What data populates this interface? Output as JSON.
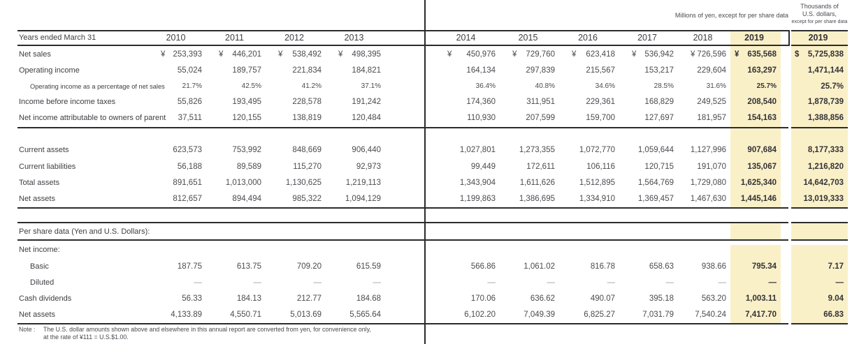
{
  "captions": {
    "yen": "Millions of yen, except for per share data",
    "usd_line1": "Thousands of",
    "usd_line2": "U.S. dollars,",
    "usd_line3": "except for per share data"
  },
  "header": {
    "row_label": "Years ended March 31",
    "years": [
      "2010",
      "2011",
      "2012",
      "2013",
      "2014",
      "2015",
      "2016",
      "2017",
      "2018",
      "2019"
    ],
    "usd_year": "2019"
  },
  "colors": {
    "highlight": "#FAF0C8",
    "rule": "#2B2B2B",
    "text": "#3E3E44"
  },
  "table": {
    "rows": [
      {
        "label": "Net sales",
        "indent": 0,
        "small": false,
        "currency": true,
        "values": [
          "253,393",
          "446,201",
          "538,492",
          "498,395",
          "450,976",
          "729,760",
          "623,418",
          "536,942",
          "726,596",
          "635,568"
        ],
        "usd": "5,725,838"
      },
      {
        "label": "Operating income",
        "indent": 0,
        "small": false,
        "currency": false,
        "values": [
          "55,024",
          "189,757",
          "221,834",
          "184,821",
          "164,134",
          "297,839",
          "215,567",
          "153,217",
          "229,604",
          "163,297"
        ],
        "usd": "1,471,144"
      },
      {
        "label": "Operating income as a percentage of net sales",
        "indent": 1,
        "small": true,
        "currency": false,
        "values": [
          "21.7%",
          "42.5%",
          "41.2%",
          "37.1%",
          "36.4%",
          "40.8%",
          "34.6%",
          "28.5%",
          "31.6%",
          "25.7%"
        ],
        "usd": "25.7%"
      },
      {
        "label": "Income before income taxes",
        "indent": 0,
        "small": false,
        "currency": false,
        "values": [
          "55,826",
          "193,495",
          "228,578",
          "191,242",
          "174,360",
          "311,951",
          "229,361",
          "168,829",
          "249,525",
          "208,540"
        ],
        "usd": "1,878,739"
      },
      {
        "label": "Net income attributable to owners of parent",
        "indent": 0,
        "small": false,
        "currency": false,
        "values": [
          "37,511",
          "120,155",
          "138,819",
          "120,484",
          "110,930",
          "207,599",
          "159,700",
          "127,697",
          "181,957",
          "154,163"
        ],
        "usd": "1,388,856"
      },
      {
        "label": "Current assets",
        "indent": 0,
        "small": false,
        "currency": false,
        "values": [
          "623,573",
          "753,992",
          "848,669",
          "906,440",
          "1,027,801",
          "1,273,355",
          "1,072,770",
          "1,059,644",
          "1,127,996",
          "907,684"
        ],
        "usd": "8,177,333"
      },
      {
        "label": "Current liabilities",
        "indent": 0,
        "small": false,
        "currency": false,
        "values": [
          "56,188",
          "89,589",
          "115,270",
          "92,973",
          "99,449",
          "172,611",
          "106,116",
          "120,715",
          "191,070",
          "135,067"
        ],
        "usd": "1,216,820"
      },
      {
        "label": "Total assets",
        "indent": 0,
        "small": false,
        "currency": false,
        "values": [
          "891,651",
          "1,013,000",
          "1,130,625",
          "1,219,113",
          "1,343,904",
          "1,611,626",
          "1,512,895",
          "1,564,769",
          "1,729,080",
          "1,625,340"
        ],
        "usd": "14,642,703"
      },
      {
        "label": "Net assets",
        "indent": 0,
        "small": false,
        "currency": false,
        "values": [
          "812,657",
          "894,494",
          "985,322",
          "1,094,129",
          "1,199,863",
          "1,386,695",
          "1,334,910",
          "1,369,457",
          "1,467,630",
          "1,445,146"
        ],
        "usd": "13,019,333"
      },
      {
        "label": "Per share data (Yen and U.S. Dollars):",
        "indent": 0,
        "small": false,
        "currency": false,
        "values": [],
        "usd": ""
      },
      {
        "label": "Net income:",
        "indent": 0,
        "small": false,
        "currency": false,
        "values": [],
        "usd": ""
      },
      {
        "label": "Basic",
        "indent": 1,
        "small": false,
        "currency": false,
        "values": [
          "187.75",
          "613.75",
          "709.20",
          "615.59",
          "566.86",
          "1,061.02",
          "816.78",
          "658.63",
          "938.66",
          "795.34"
        ],
        "usd": "7.17"
      },
      {
        "label": "Diluted",
        "indent": 1,
        "small": false,
        "currency": false,
        "values": [
          "—",
          "—",
          "—",
          "—",
          "—",
          "—",
          "—",
          "—",
          "—",
          "—"
        ],
        "usd": "—"
      },
      {
        "label": "Cash dividends",
        "indent": 0,
        "small": false,
        "currency": false,
        "values": [
          "56.33",
          "184.13",
          "212.77",
          "184.68",
          "170.06",
          "636.62",
          "490.07",
          "395.18",
          "563.20",
          "1,003.11"
        ],
        "usd": "9.04"
      },
      {
        "label": "Net assets",
        "indent": 0,
        "small": false,
        "currency": false,
        "values": [
          "4,133.89",
          "4,550.71",
          "5,013.69",
          "5,565.64",
          "6,102.20",
          "7,049.39",
          "6,825.27",
          "7,031.79",
          "7,540.24",
          "7,417.70"
        ],
        "usd": "66.83"
      }
    ]
  },
  "note": {
    "prefix": "Note :",
    "line1": "The U.S. dollar amounts shown above and elsewhere in this annual report are converted from yen, for convenience only,",
    "line2": "at the rate of ¥111 = U.S.$1.00."
  }
}
